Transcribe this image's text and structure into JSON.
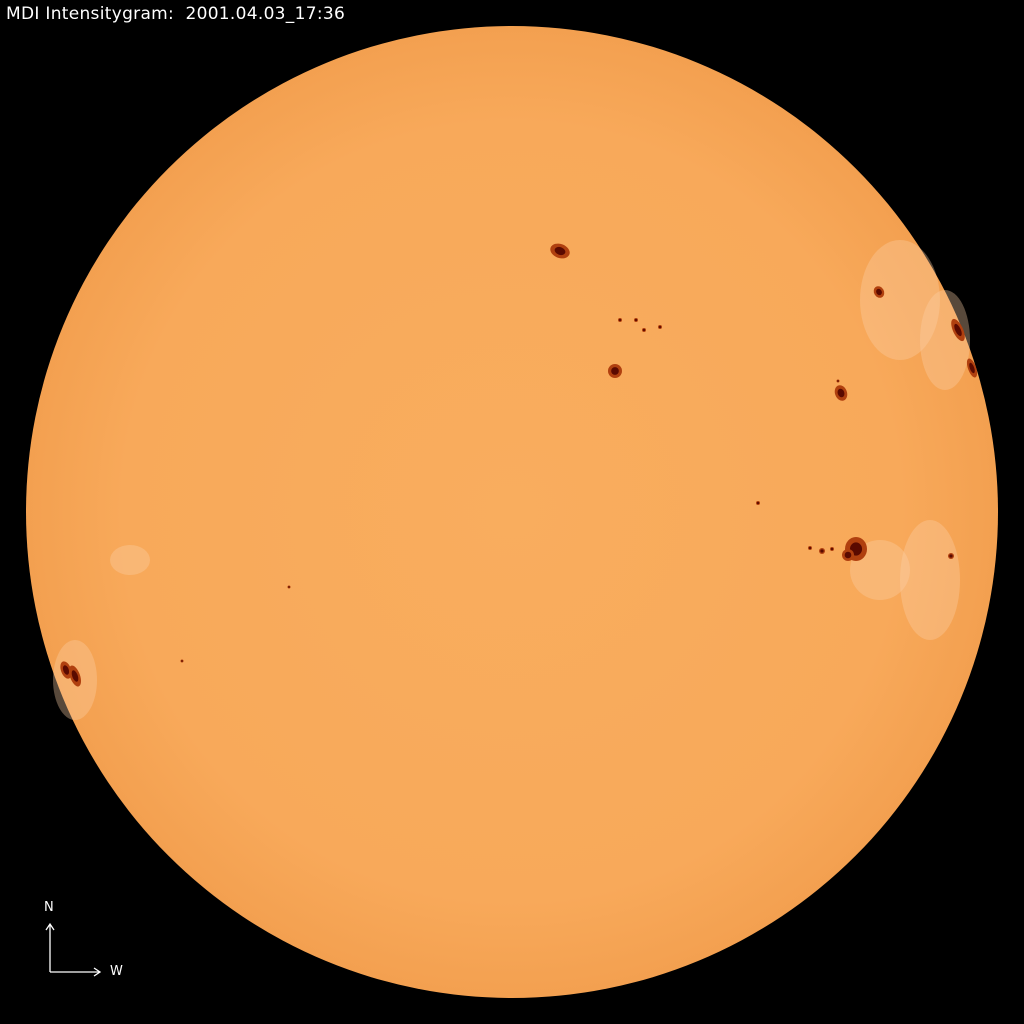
{
  "title": "MDI Intensitygram:  2001.04.03_17:36",
  "compass": {
    "north_label": "N",
    "west_label": "W"
  },
  "colors": {
    "background": "#000000",
    "disk": "#f8aa5c",
    "limb": "#f09a48",
    "spot_umbra": "#5a0a00",
    "spot_penumbra": "#b0400f",
    "facula": "#fcd2a8"
  }
}
